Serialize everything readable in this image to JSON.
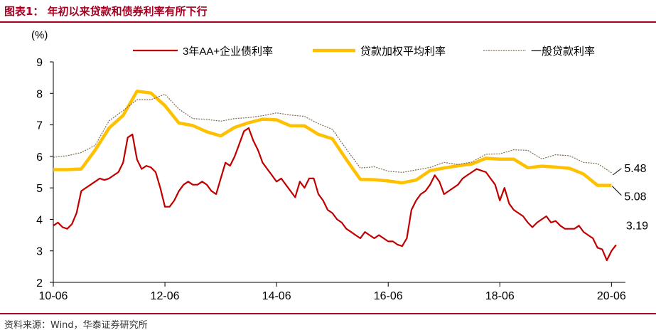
{
  "header": {
    "title": "图表1：  年初以来贷款和债券利率有所下行"
  },
  "footer": {
    "source": "资料来源：Wind，华泰证券研究所"
  },
  "colors": {
    "brand": "#a50021",
    "bond": "#c00000",
    "loan_avg": "#ffc000",
    "loan_general": "#7f6b4f"
  },
  "chart_data": {
    "type": "line",
    "unit_label": "(%)",
    "ylim": [
      2,
      9
    ],
    "yticks": [
      2,
      3,
      4,
      5,
      6,
      7,
      8,
      9
    ],
    "xlim": [
      "2010-06",
      "2020-09"
    ],
    "xticks": [
      "10-06",
      "12-06",
      "14-06",
      "16-06",
      "18-06",
      "20-06"
    ],
    "xtick_dates": [
      "2010-06",
      "2012-06",
      "2014-06",
      "2016-06",
      "2018-06",
      "2020-06"
    ],
    "grid": false,
    "legend": "top",
    "annotations": [
      "5.48",
      "5.08",
      "3.19"
    ],
    "series": [
      {
        "name": "3年AA+企业债利率",
        "style": "solid-thin",
        "x": [
          "2010-06",
          "2010-07",
          "2010-08",
          "2010-09",
          "2010-10",
          "2010-11",
          "2010-12",
          "2011-01",
          "2011-02",
          "2011-03",
          "2011-04",
          "2011-05",
          "2011-06",
          "2011-07",
          "2011-08",
          "2011-09",
          "2011-10",
          "2011-11",
          "2011-12",
          "2012-01",
          "2012-02",
          "2012-03",
          "2012-04",
          "2012-05",
          "2012-06",
          "2012-07",
          "2012-08",
          "2012-09",
          "2012-10",
          "2012-11",
          "2012-12",
          "2013-01",
          "2013-02",
          "2013-03",
          "2013-04",
          "2013-05",
          "2013-06",
          "2013-07",
          "2013-08",
          "2013-09",
          "2013-10",
          "2013-11",
          "2013-12",
          "2014-01",
          "2014-02",
          "2014-03",
          "2014-04",
          "2014-05",
          "2014-06",
          "2014-07",
          "2014-08",
          "2014-09",
          "2014-10",
          "2014-11",
          "2014-12",
          "2015-01",
          "2015-02",
          "2015-03",
          "2015-04",
          "2015-05",
          "2015-06",
          "2015-07",
          "2015-08",
          "2015-09",
          "2015-10",
          "2015-11",
          "2015-12",
          "2016-01",
          "2016-02",
          "2016-03",
          "2016-04",
          "2016-05",
          "2016-06",
          "2016-07",
          "2016-08",
          "2016-09",
          "2016-10",
          "2016-11",
          "2016-12",
          "2017-01",
          "2017-02",
          "2017-03",
          "2017-04",
          "2017-05",
          "2017-06",
          "2017-07",
          "2017-08",
          "2017-09",
          "2017-10",
          "2017-11",
          "2017-12",
          "2018-01",
          "2018-02",
          "2018-03",
          "2018-04",
          "2018-05",
          "2018-06",
          "2018-07",
          "2018-08",
          "2018-09",
          "2018-10",
          "2018-11",
          "2018-12",
          "2019-01",
          "2019-02",
          "2019-03",
          "2019-04",
          "2019-05",
          "2019-06",
          "2019-07",
          "2019-08",
          "2019-09",
          "2019-10",
          "2019-11",
          "2019-12",
          "2020-01",
          "2020-02",
          "2020-03",
          "2020-04",
          "2020-05",
          "2020-06",
          "2020-07"
        ],
        "y": [
          3.8,
          3.9,
          3.75,
          3.7,
          3.85,
          4.2,
          4.9,
          5.0,
          5.1,
          5.2,
          5.3,
          5.25,
          5.3,
          5.4,
          5.5,
          5.8,
          6.6,
          6.7,
          5.9,
          5.6,
          5.7,
          5.65,
          5.5,
          5.0,
          4.4,
          4.4,
          4.6,
          4.9,
          5.1,
          5.2,
          5.1,
          5.1,
          5.2,
          5.1,
          4.9,
          4.8,
          5.3,
          5.8,
          5.7,
          6.0,
          6.4,
          6.8,
          6.9,
          6.5,
          6.2,
          5.8,
          5.6,
          5.4,
          5.2,
          5.3,
          5.1,
          4.9,
          4.7,
          5.2,
          5.0,
          5.3,
          5.3,
          4.8,
          4.6,
          4.3,
          4.2,
          4.0,
          3.9,
          3.7,
          3.6,
          3.5,
          3.4,
          3.6,
          3.5,
          3.4,
          3.5,
          3.4,
          3.3,
          3.3,
          3.2,
          3.15,
          3.4,
          4.3,
          4.6,
          4.8,
          4.9,
          5.1,
          5.4,
          5.2,
          4.8,
          4.9,
          5.0,
          5.1,
          5.3,
          5.4,
          5.5,
          5.6,
          5.55,
          5.5,
          5.3,
          5.1,
          4.6,
          5.0,
          4.5,
          4.3,
          4.2,
          4.1,
          3.9,
          3.75,
          3.9,
          4.0,
          4.1,
          3.9,
          3.95,
          3.8,
          3.7,
          3.7,
          3.7,
          3.8,
          3.6,
          3.5,
          3.4,
          3.1,
          3.05,
          2.7,
          3.0,
          3.19
        ]
      },
      {
        "name": "贷款加权平均利率",
        "style": "thick",
        "x": [
          "2010-06",
          "2010-09",
          "2010-12",
          "2011-03",
          "2011-06",
          "2011-09",
          "2011-12",
          "2012-03",
          "2012-06",
          "2012-09",
          "2012-12",
          "2013-03",
          "2013-06",
          "2013-09",
          "2013-12",
          "2014-03",
          "2014-06",
          "2014-09",
          "2014-12",
          "2015-03",
          "2015-06",
          "2015-09",
          "2015-12",
          "2016-03",
          "2016-06",
          "2016-09",
          "2016-12",
          "2017-03",
          "2017-06",
          "2017-09",
          "2017-12",
          "2018-03",
          "2018-06",
          "2018-09",
          "2018-12",
          "2019-03",
          "2019-06",
          "2019-09",
          "2019-12",
          "2020-03",
          "2020-06"
        ],
        "y": [
          5.58,
          5.58,
          5.6,
          6.2,
          6.9,
          7.3,
          8.07,
          8.01,
          7.61,
          7.06,
          6.98,
          6.78,
          6.65,
          6.92,
          7.07,
          7.18,
          7.16,
          6.97,
          6.97,
          6.7,
          6.56,
          5.9,
          5.27,
          5.26,
          5.22,
          5.16,
          5.25,
          5.55,
          5.63,
          5.7,
          5.76,
          5.94,
          5.91,
          5.91,
          5.64,
          5.69,
          5.66,
          5.62,
          5.44,
          5.08,
          5.08
        ]
      },
      {
        "name": "一般贷款利率",
        "style": "dotted",
        "x": [
          "2010-06",
          "2010-09",
          "2010-12",
          "2011-03",
          "2011-06",
          "2011-09",
          "2011-12",
          "2012-03",
          "2012-06",
          "2012-09",
          "2012-12",
          "2013-03",
          "2013-06",
          "2013-09",
          "2013-12",
          "2014-03",
          "2014-06",
          "2014-09",
          "2014-12",
          "2015-03",
          "2015-06",
          "2015-09",
          "2015-12",
          "2016-03",
          "2016-06",
          "2016-09",
          "2016-12",
          "2017-03",
          "2017-06",
          "2017-09",
          "2017-12",
          "2018-03",
          "2018-06",
          "2018-09",
          "2018-12",
          "2019-03",
          "2019-06",
          "2019-09",
          "2019-12",
          "2020-03",
          "2020-06"
        ],
        "y": [
          5.97,
          6.02,
          6.12,
          6.35,
          7.13,
          7.45,
          7.8,
          7.8,
          7.97,
          7.5,
          7.2,
          7.17,
          7.12,
          7.2,
          7.23,
          7.29,
          7.38,
          7.31,
          7.27,
          7.04,
          6.86,
          6.23,
          5.63,
          5.67,
          5.53,
          5.49,
          5.57,
          5.65,
          5.81,
          5.74,
          5.82,
          6.07,
          6.08,
          6.21,
          6.19,
          5.92,
          6.05,
          6.02,
          5.81,
          5.77,
          5.48
        ]
      }
    ]
  }
}
